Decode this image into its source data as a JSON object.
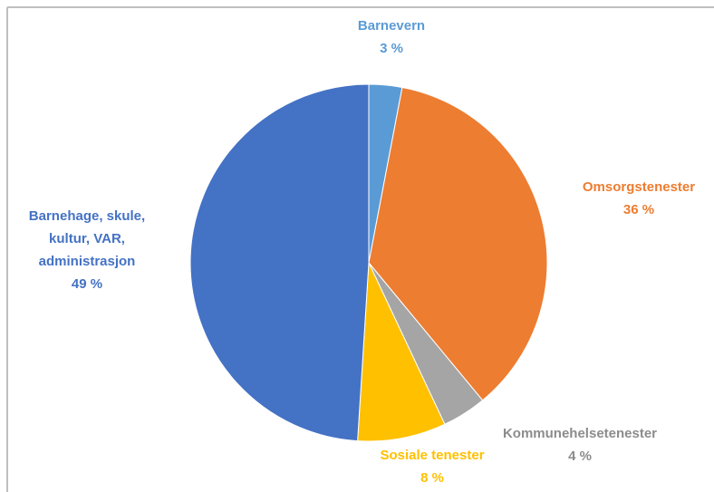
{
  "chart_data": {
    "type": "pie",
    "categories": [
      "Barnevern",
      "Omsorgstenester",
      "Kommunehelsetenester",
      "Sosiale tenester",
      "Barnehage, skule, kultur, VAR, administrasjon"
    ],
    "values": [
      3,
      36,
      4,
      8,
      49
    ],
    "value_labels": [
      "3 %",
      "36 %",
      "4 %",
      "8 %",
      "49 %"
    ],
    "colors": [
      "#5b9bd5",
      "#ed7d31",
      "#a5a5a5",
      "#ffc000",
      "#4472c4"
    ]
  }
}
